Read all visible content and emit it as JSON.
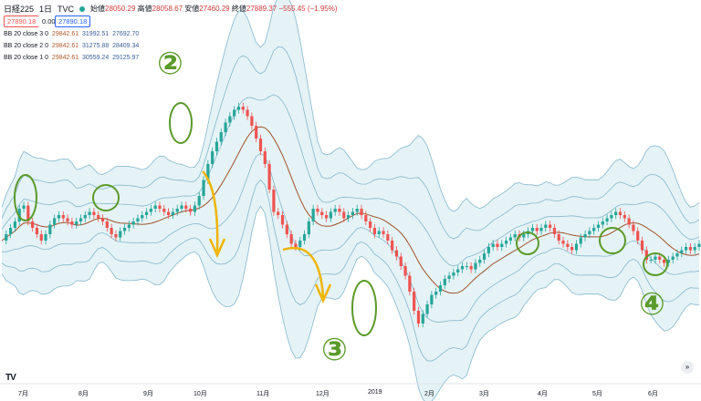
{
  "header": {
    "symbol": "日経225",
    "interval": "1日",
    "source": "TVC",
    "open_label": "始値",
    "open_value": "28050.29",
    "high_label": "高値",
    "high_value": "28058.67",
    "low_label": "安値",
    "low_value": "27460.29",
    "close_label": "終値",
    "close_value": "27889.37",
    "change": "−555.45 (−1.95%)",
    "sell_price": "27890.18",
    "spread": "0.00",
    "buy_price": "27890.18"
  },
  "indicators": [
    {
      "label": "BB 20 close 3 0",
      "basis": "29842.61",
      "upper": "31992.51",
      "lower": "27692.70"
    },
    {
      "label": "BB 20 close 2 0",
      "basis": "29842.61",
      "upper": "31275.88",
      "lower": "28409.34"
    },
    {
      "label": "BB 20 close 1 0",
      "basis": "29842.61",
      "upper": "30559.24",
      "lower": "29125.97"
    }
  ],
  "x_axis_ticks": [
    "7月",
    "8月",
    "9月",
    "10月",
    "11月",
    "12月",
    "2019",
    "2月",
    "3月",
    "4月",
    "5月",
    "6月"
  ],
  "annotations": {
    "two": "②",
    "three": "③",
    "four": "④"
  },
  "colors": {
    "up": "#26a69a",
    "down": "#ef5350",
    "basis": "#a0522d",
    "band": "#6aa7c2",
    "fill": "#cfe9ee",
    "circle": "#5a9a2a",
    "arrow": "#f0b400"
  },
  "chart_data": {
    "type": "candlestick",
    "title": "日経225 1日 TVC",
    "x_ticks": [
      "7月",
      "8月",
      "9月",
      "10月",
      "11月",
      "12月",
      "2019",
      "2月",
      "3月",
      "4月",
      "5月",
      "6月"
    ],
    "price_path": [
      0.36,
      0.38,
      0.4,
      0.42,
      0.46,
      0.47,
      0.42,
      0.4,
      0.38,
      0.36,
      0.38,
      0.41,
      0.43,
      0.44,
      0.43,
      0.42,
      0.41,
      0.42,
      0.43,
      0.44,
      0.45,
      0.44,
      0.43,
      0.42,
      0.4,
      0.38,
      0.37,
      0.39,
      0.4,
      0.41,
      0.42,
      0.43,
      0.44,
      0.45,
      0.46,
      0.47,
      0.46,
      0.45,
      0.44,
      0.45,
      0.46,
      0.47,
      0.46,
      0.45,
      0.47,
      0.5,
      0.55,
      0.6,
      0.64,
      0.67,
      0.7,
      0.73,
      0.75,
      0.77,
      0.78,
      0.77,
      0.75,
      0.72,
      0.68,
      0.64,
      0.6,
      0.52,
      0.45,
      0.44,
      0.41,
      0.38,
      0.35,
      0.34,
      0.36,
      0.38,
      0.42,
      0.46,
      0.45,
      0.44,
      0.43,
      0.45,
      0.46,
      0.45,
      0.43,
      0.44,
      0.45,
      0.46,
      0.44,
      0.42,
      0.4,
      0.38,
      0.39,
      0.38,
      0.36,
      0.33,
      0.31,
      0.28,
      0.25,
      0.2,
      0.14,
      0.1,
      0.13,
      0.16,
      0.19,
      0.2,
      0.22,
      0.24,
      0.25,
      0.26,
      0.27,
      0.28,
      0.28,
      0.27,
      0.29,
      0.3,
      0.32,
      0.34,
      0.35,
      0.34,
      0.35,
      0.36,
      0.37,
      0.38,
      0.37,
      0.38,
      0.39,
      0.4,
      0.39,
      0.4,
      0.41,
      0.4,
      0.38,
      0.36,
      0.35,
      0.34,
      0.33,
      0.35,
      0.37,
      0.38,
      0.39,
      0.4,
      0.41,
      0.42,
      0.43,
      0.44,
      0.45,
      0.44,
      0.43,
      0.41,
      0.39,
      0.36,
      0.33,
      0.3,
      0.3,
      0.31,
      0.3,
      0.29,
      0.3,
      0.31,
      0.32,
      0.33,
      0.34,
      0.33,
      0.34,
      0.35
    ]
  }
}
